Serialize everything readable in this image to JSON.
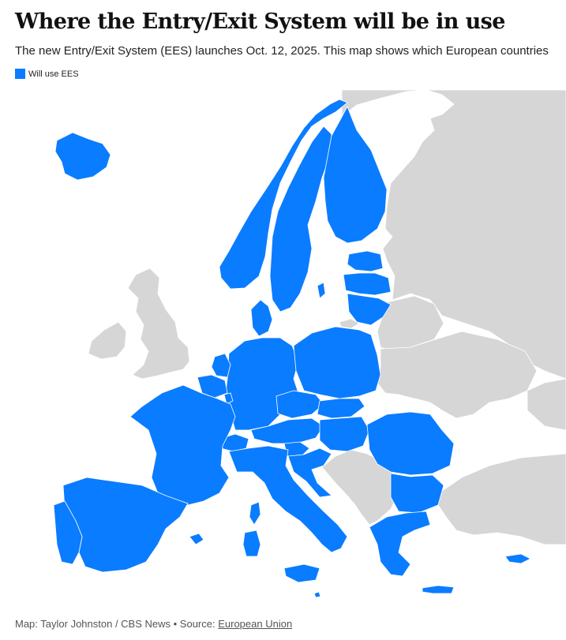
{
  "title": "Where the Entry/Exit System will be in use",
  "subtitle": "The new Entry/Exit System (EES) launches Oct. 12, 2025. This map shows which European countries",
  "legend": {
    "label": "Will use EES",
    "color": "#0a7cff"
  },
  "colors": {
    "ees": "#0a7cff",
    "other": "#d6d6d6",
    "water": "#ffffff",
    "border": "#ffffff"
  },
  "footer": {
    "credit": "Map: Taylor Johnston / CBS News",
    "separator": " • Source: ",
    "source_link": "European Union"
  }
}
